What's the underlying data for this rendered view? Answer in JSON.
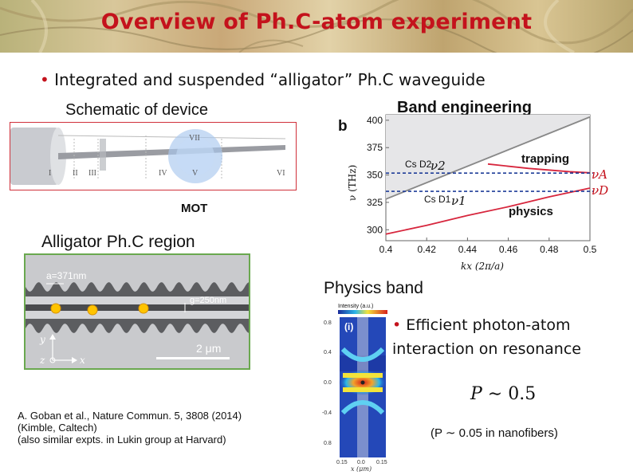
{
  "slide": {
    "title": "Overview of Ph.C-atom experiment",
    "bullet1": "Integrated and suspended “alligator” Ph.C waveguide",
    "bullet2": "Efficient photon-atom interaction on resonance",
    "bullet_dot": "•",
    "accent_color": "#c4121c"
  },
  "schematic": {
    "label": "Schematic of device",
    "mot_label": "MOT",
    "regions": [
      "I",
      "II",
      "III",
      "IV",
      "V",
      "VI",
      "VII"
    ]
  },
  "sem_image": {
    "label": "Alligator Ph.C region",
    "period": "a=371nm",
    "gap": "g=250nm",
    "scalebar": "2 μm",
    "axis_y": "y",
    "axis_z": "z",
    "axis_x": "x"
  },
  "band_engineering": {
    "label": "Band engineering",
    "panel": "b",
    "trapping": "trapping",
    "physics": "physics",
    "nu_a": "νA",
    "nu_b": "νD",
    "nu2": "ν2",
    "nu1": "ν1",
    "cs_d2": "Cs D2",
    "cs_d1": "Cs D1"
  },
  "physics_band": {
    "label": "Physics band",
    "panel": "(i)",
    "intensity_label": "Intensity (a.u.)",
    "y_ticks": [
      "0.8",
      "0.4",
      "0.0",
      "-0.4",
      "0.8"
    ],
    "x_ticks": [
      "0.15",
      "0.0",
      "0.15"
    ],
    "x_label": "x (μm)"
  },
  "results": {
    "p_formula": "P ∼ 0.5",
    "p_symbol": "P",
    "p_rest": " ∼ 0.5",
    "nanofiber": "(P ∼ 0.05 in nanofibers)"
  },
  "citation": {
    "line1": "A. Goban et al., Nature Commun. 5, 3808 (2014)",
    "line2": "(Kimble, Caltech)",
    "line3": "(also similar expts. in Lukin group at Harvard)"
  },
  "chart_data": {
    "type": "line",
    "xlabel": "kx (2π/a)",
    "ylabel": "ν (THz)",
    "xlim": [
      0.4,
      0.5
    ],
    "ylim": [
      290,
      405
    ],
    "x_ticks": [
      0.4,
      0.42,
      0.44,
      0.46,
      0.48,
      0.5
    ],
    "x_tick_labels": [
      "0.4",
      "0.42",
      "0.44",
      "0.46",
      "0.48",
      "0.5"
    ],
    "y_ticks": [
      300,
      325,
      350,
      375,
      400
    ],
    "y_tick_labels": [
      "300",
      "325",
      "350",
      "375",
      "400"
    ],
    "series": [
      {
        "name": "",
        "x": [
          0.4,
          0.5
        ],
        "y": [
          328,
          403
        ],
        "color": "#888888"
      },
      {
        "name": "",
        "x": [
          0.4,
          0.42,
          0.44,
          0.46,
          0.48,
          0.5
        ],
        "y": [
          296,
          304,
          313,
          321,
          330,
          338
        ],
        "color": "#d7263d"
      },
      {
        "name": "",
        "x": [
          0.45,
          0.47,
          0.49,
          0.5
        ],
        "y": [
          360,
          356,
          353,
          352
        ],
        "color": "#d7263d"
      }
    ],
    "reference_lines": [
      {
        "name": "Cs D2",
        "y": 351.7,
        "color": "#1f3d99"
      },
      {
        "name": "Cs D1",
        "y": 335.1,
        "color": "#1f3d99"
      }
    ]
  }
}
